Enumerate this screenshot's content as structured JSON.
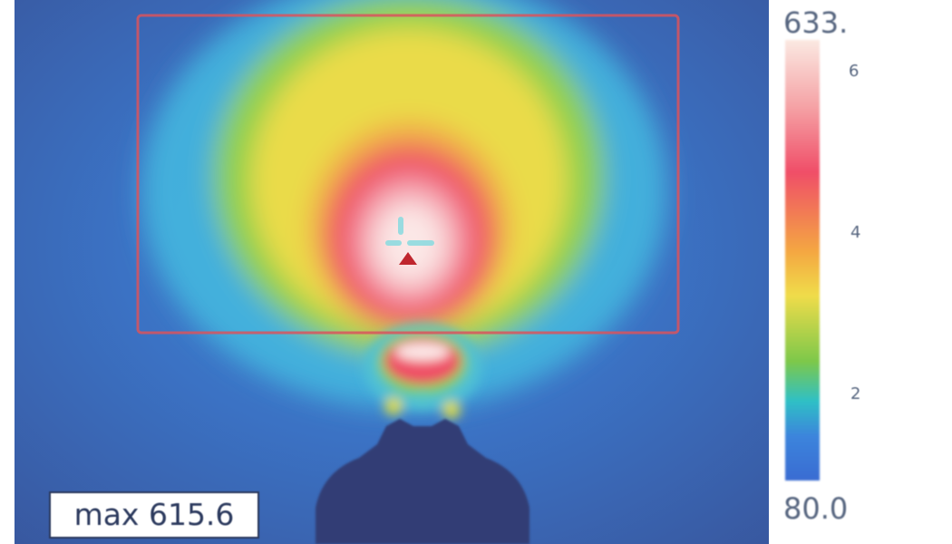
{
  "thermal_view": {
    "max_label": "max 615.6",
    "colors": {
      "background_dark": "#38549a",
      "roi_box": "#d9535d",
      "crosshair": "#8fdbe0",
      "hotspot_marker": "#c0262e"
    },
    "icons": [
      "crosshair-icon",
      "hotspot-triangle-icon"
    ]
  },
  "color_scale": {
    "max_label": "633.",
    "min_label": "80.0",
    "tick_labels": [
      "6",
      "4",
      "2"
    ],
    "gradient_stops": [
      "#fbe9e2",
      "#f5a3a6",
      "#f04e68",
      "#f4a742",
      "#f0dc4a",
      "#7dc84a",
      "#2fc0c6",
      "#3c84dc",
      "#3a6cd2"
    ]
  }
}
